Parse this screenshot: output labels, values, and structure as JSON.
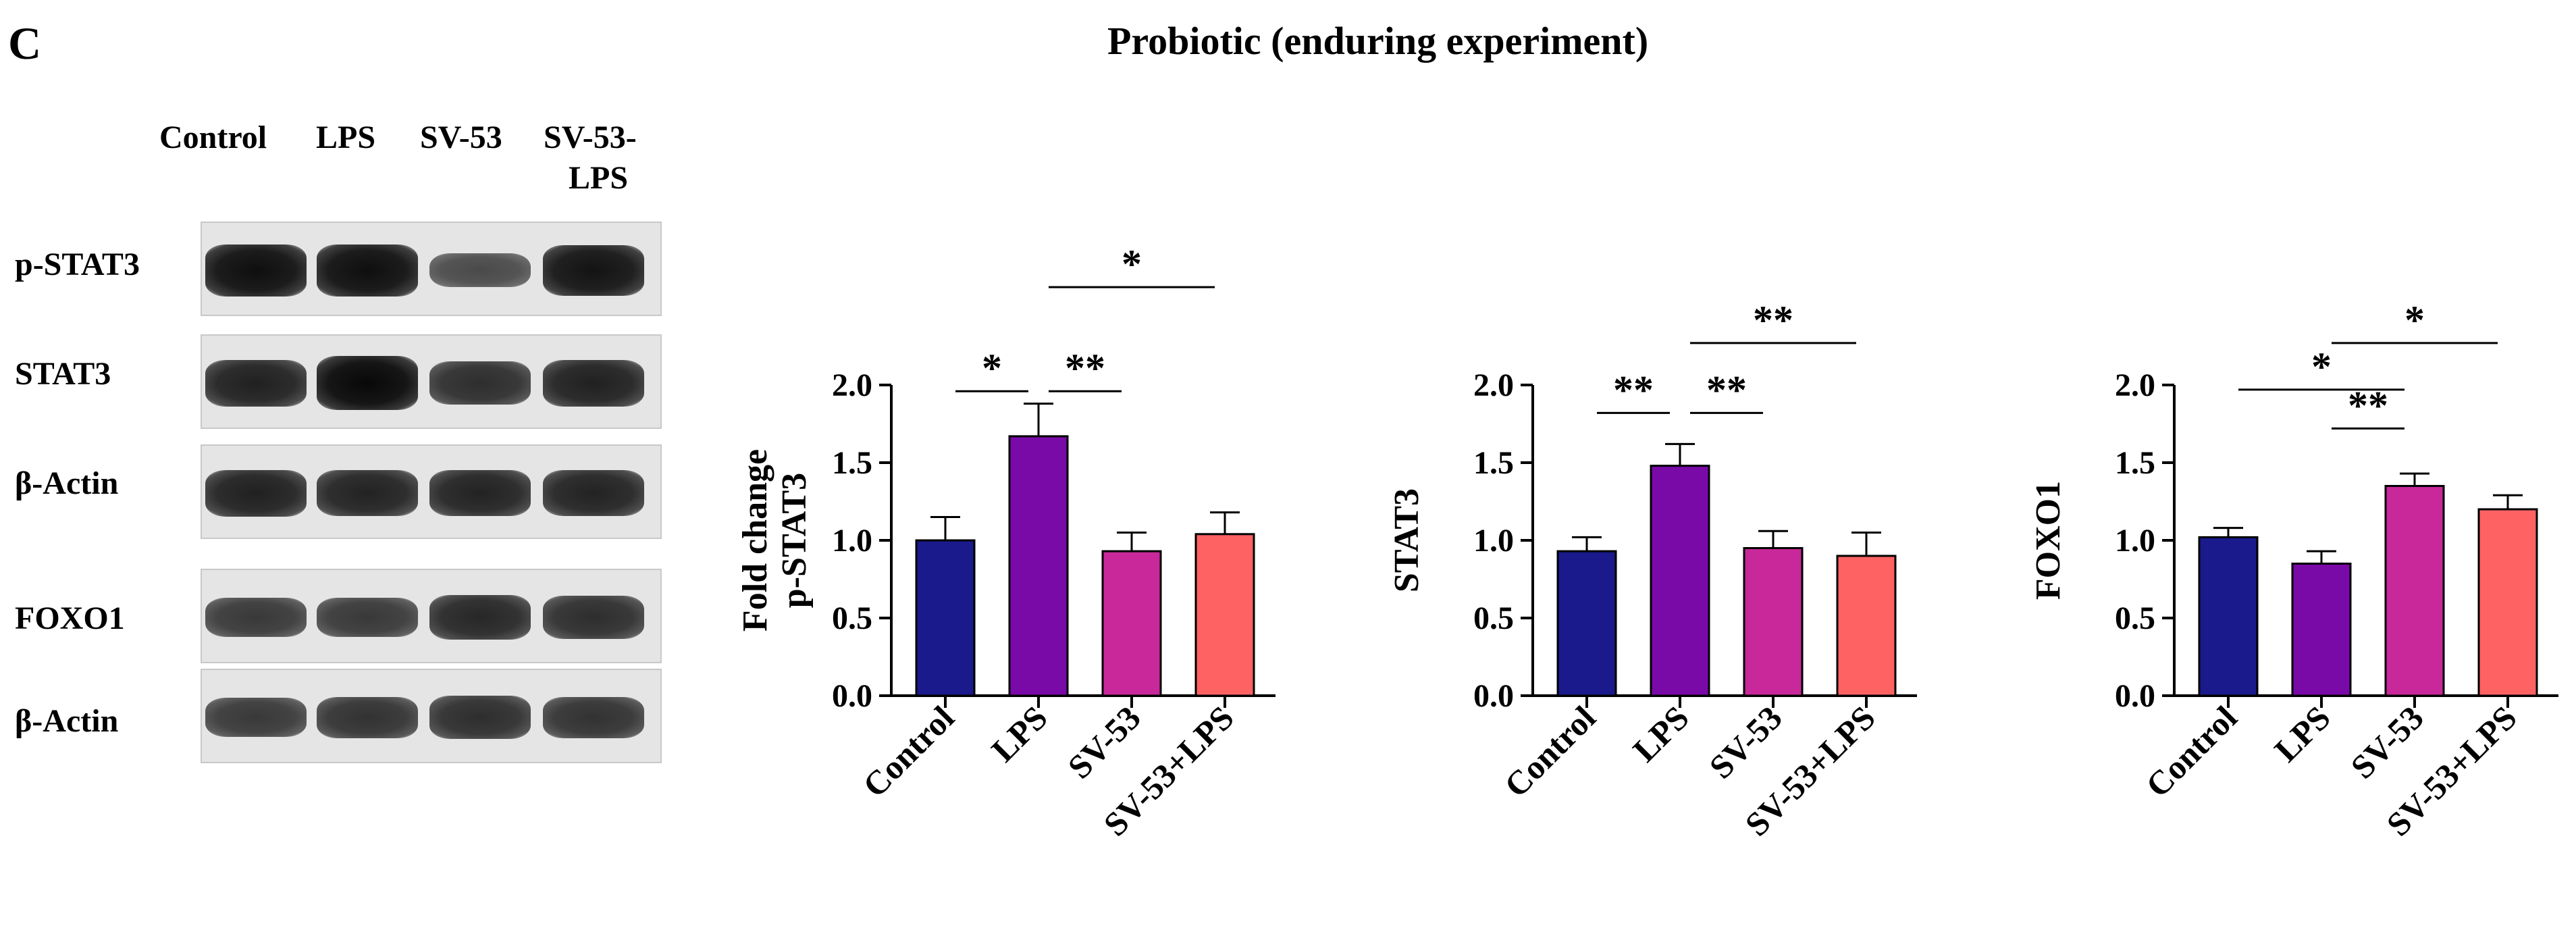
{
  "panel_label": "C",
  "title": "Probiotic (enduring experiment)",
  "western_blot": {
    "lanes": [
      "Control",
      "LPS",
      "SV-53",
      "SV-53-"
    ],
    "lane_label_line2": "LPS",
    "strips": [
      {
        "label": "p-STAT3",
        "intensity": [
          0.95,
          0.95,
          0.45,
          0.9
        ]
      },
      {
        "label": "STAT3",
        "intensity": [
          0.8,
          1.0,
          0.7,
          0.8
        ]
      },
      {
        "label": "β-Actin",
        "intensity": [
          0.8,
          0.78,
          0.78,
          0.78
        ]
      },
      {
        "label": "FOXO1",
        "intensity": [
          0.6,
          0.6,
          0.75,
          0.7
        ]
      },
      {
        "label": "β-Actin",
        "intensity": [
          0.6,
          0.65,
          0.7,
          0.65
        ]
      }
    ]
  },
  "colors": {
    "Control": "#1a1a8c",
    "LPS": "#7a0aa8",
    "SV-53": "#c8289a",
    "SV-53+LPS": "#ff6262"
  },
  "chart_data": [
    {
      "type": "bar",
      "categories": [
        "Control",
        "LPS",
        "SV-53",
        "SV-53+LPS"
      ],
      "values": [
        1.0,
        1.67,
        0.93,
        1.04
      ],
      "errors": [
        0.15,
        0.21,
        0.12,
        0.14
      ],
      "title": "",
      "xlabel": "",
      "ylabel_lines": [
        "Fold change",
        "p-STAT3"
      ],
      "ylim": [
        0,
        2.0
      ],
      "yticks": [
        "0.0",
        "0.5",
        "1.0",
        "1.5",
        "2.0"
      ],
      "significance": [
        {
          "from": 0,
          "to": 1,
          "label": "*",
          "level": 1.96
        },
        {
          "from": 1,
          "to": 2,
          "label": "**",
          "level": 1.96
        },
        {
          "from": 1,
          "to": 3,
          "label": "*",
          "level": 2.63
        }
      ]
    },
    {
      "type": "bar",
      "categories": [
        "Control",
        "LPS",
        "SV-53",
        "SV-53+LPS"
      ],
      "values": [
        0.93,
        1.48,
        0.95,
        0.9
      ],
      "errors": [
        0.09,
        0.14,
        0.11,
        0.15
      ],
      "title": "",
      "xlabel": "",
      "ylabel_lines": [
        "STAT3"
      ],
      "ylim": [
        0,
        2.0
      ],
      "yticks": [
        "0.0",
        "0.5",
        "1.0",
        "1.5",
        "2.0"
      ],
      "significance": [
        {
          "from": 0,
          "to": 1,
          "label": "**",
          "level": 1.82
        },
        {
          "from": 1,
          "to": 2,
          "label": "**",
          "level": 1.82
        },
        {
          "from": 1,
          "to": 3,
          "label": "**",
          "level": 2.27
        }
      ]
    },
    {
      "type": "bar",
      "categories": [
        "Control",
        "LPS",
        "SV-53",
        "SV-53+LPS"
      ],
      "values": [
        1.02,
        0.85,
        1.35,
        1.2
      ],
      "errors": [
        0.06,
        0.08,
        0.08,
        0.09
      ],
      "title": "",
      "xlabel": "",
      "ylabel_lines": [
        "FOXO1"
      ],
      "ylim": [
        0,
        2.0
      ],
      "yticks": [
        "0.0",
        "0.5",
        "1.0",
        "1.5",
        "2.0"
      ],
      "significance": [
        {
          "from": 0,
          "to": 2,
          "label": "*",
          "level": 1.97
        },
        {
          "from": 1,
          "to": 2,
          "label": "**",
          "level": 1.72
        },
        {
          "from": 1,
          "to": 3,
          "label": "*",
          "level": 2.27
        }
      ]
    }
  ]
}
